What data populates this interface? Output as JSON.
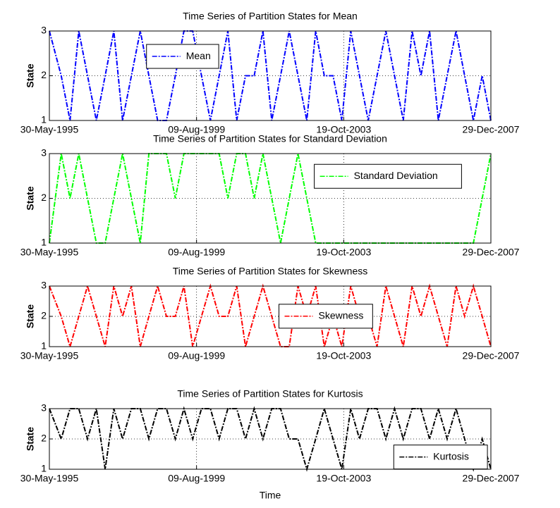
{
  "chart_data": [
    {
      "type": "line",
      "title": "Time Series of Partition States for Mean",
      "ylabel": "State",
      "x": [
        "1995-05-30",
        "1995-09-30",
        "1995-12-31",
        "1996-03-31",
        "1996-06-30",
        "1996-09-30",
        "1996-12-31",
        "1997-03-31",
        "1997-06-30",
        "1997-09-30",
        "1997-12-31",
        "1998-03-31",
        "1998-06-30",
        "1998-09-30",
        "1998-12-31",
        "1999-03-31",
        "1999-06-30",
        "1999-09-30",
        "1999-12-31",
        "2000-03-31",
        "2000-06-30",
        "2000-09-30",
        "2000-12-31",
        "2001-03-31",
        "2001-06-30",
        "2001-09-30",
        "2001-12-31",
        "2002-03-31",
        "2002-06-30",
        "2002-09-30",
        "2002-12-31",
        "2003-03-31",
        "2003-06-30",
        "2003-09-30",
        "2003-12-31",
        "2004-03-31",
        "2004-06-30",
        "2004-09-30",
        "2004-12-31",
        "2005-03-31",
        "2005-06-30",
        "2005-09-30",
        "2005-12-31",
        "2006-03-31",
        "2006-06-30",
        "2006-09-30",
        "2006-12-31",
        "2007-03-31",
        "2007-06-30",
        "2007-09-30",
        "2007-12-29"
      ],
      "xlim": [
        "1995-05-30",
        "2007-12-29"
      ],
      "xticks": [
        {
          "value": "1995-05-30",
          "label": "30-May-1995"
        },
        {
          "value": "1999-08-09",
          "label": "09-Aug-1999"
        },
        {
          "value": "2003-10-19",
          "label": "19-Oct-2003"
        },
        {
          "value": "2007-12-29",
          "label": "29-Dec-2007"
        }
      ],
      "ylim": [
        1,
        3
      ],
      "yticks": [
        1,
        2,
        3
      ],
      "grid": true,
      "legend": "upper left",
      "series": [
        {
          "name": "Mean",
          "color": "#0000ff",
          "values": [
            3,
            2,
            1,
            3,
            2,
            1,
            2,
            3,
            1,
            2,
            3,
            2,
            1,
            1,
            2,
            3,
            3,
            2,
            1,
            2,
            3,
            1,
            2,
            2,
            3,
            1,
            2,
            3,
            2,
            1,
            3,
            2,
            2,
            1,
            3,
            2,
            1,
            2,
            3,
            2,
            1,
            3,
            2,
            3,
            1,
            2,
            3,
            2,
            1,
            2,
            1
          ]
        }
      ]
    },
    {
      "type": "line",
      "title": "Time Series of Partition States for Standard Deviation",
      "ylabel": "State",
      "x": [
        "1995-05-30",
        "1995-09-30",
        "1995-12-31",
        "1996-03-31",
        "1996-06-30",
        "1996-09-30",
        "1996-12-31",
        "1997-03-31",
        "1997-06-30",
        "1997-09-30",
        "1997-12-31",
        "1998-03-31",
        "1998-06-30",
        "1998-09-30",
        "1998-12-31",
        "1999-03-31",
        "1999-06-30",
        "1999-09-30",
        "1999-12-31",
        "2000-03-31",
        "2000-06-30",
        "2000-09-30",
        "2000-12-31",
        "2001-03-31",
        "2001-06-30",
        "2001-09-30",
        "2001-12-31",
        "2002-03-31",
        "2002-06-30",
        "2002-09-30",
        "2002-12-31",
        "2003-03-31",
        "2003-06-30",
        "2003-09-30",
        "2003-12-31",
        "2004-03-31",
        "2004-06-30",
        "2004-09-30",
        "2004-12-31",
        "2005-03-31",
        "2005-06-30",
        "2005-09-30",
        "2005-12-31",
        "2006-03-31",
        "2006-06-30",
        "2006-09-30",
        "2006-12-31",
        "2007-03-31",
        "2007-06-30",
        "2007-09-30",
        "2007-12-29"
      ],
      "xlim": [
        "1995-05-30",
        "2007-12-29"
      ],
      "xticks": [
        {
          "value": "1995-05-30",
          "label": "30-May-1995"
        },
        {
          "value": "1999-08-09",
          "label": "09-Aug-1999"
        },
        {
          "value": "2003-10-19",
          "label": "19-Oct-2003"
        },
        {
          "value": "2007-12-29",
          "label": "29-Dec-2007"
        }
      ],
      "ylim": [
        1,
        3
      ],
      "yticks": [
        1,
        2,
        3
      ],
      "grid": true,
      "legend": "upper right",
      "series": [
        {
          "name": "Standard Deviation",
          "color": "#00ff00",
          "values": [
            1,
            3,
            2,
            3,
            2,
            1,
            1,
            2,
            3,
            2,
            1,
            3,
            3,
            3,
            2,
            3,
            3,
            3,
            3,
            3,
            2,
            3,
            3,
            2,
            3,
            2,
            1,
            2,
            3,
            2,
            1,
            1,
            1,
            1,
            1,
            1,
            1,
            1,
            1,
            1,
            1,
            1,
            1,
            1,
            1,
            1,
            1,
            1,
            1,
            2,
            3
          ]
        }
      ]
    },
    {
      "type": "line",
      "title": "Time Series of Partition States for Skewness",
      "ylabel": "State",
      "x": [
        "1995-05-30",
        "1995-09-30",
        "1995-12-31",
        "1996-03-31",
        "1996-06-30",
        "1996-09-30",
        "1996-12-31",
        "1997-03-31",
        "1997-06-30",
        "1997-09-30",
        "1997-12-31",
        "1998-03-31",
        "1998-06-30",
        "1998-09-30",
        "1998-12-31",
        "1999-03-31",
        "1999-06-30",
        "1999-09-30",
        "1999-12-31",
        "2000-03-31",
        "2000-06-30",
        "2000-09-30",
        "2000-12-31",
        "2001-03-31",
        "2001-06-30",
        "2001-09-30",
        "2001-12-31",
        "2002-03-31",
        "2002-06-30",
        "2002-09-30",
        "2002-12-31",
        "2003-03-31",
        "2003-06-30",
        "2003-09-30",
        "2003-12-31",
        "2004-03-31",
        "2004-06-30",
        "2004-09-30",
        "2004-12-31",
        "2005-03-31",
        "2005-06-30",
        "2005-09-30",
        "2005-12-31",
        "2006-03-31",
        "2006-06-30",
        "2006-09-30",
        "2006-12-31",
        "2007-03-31",
        "2007-06-30",
        "2007-09-30",
        "2007-12-29"
      ],
      "xlim": [
        "1995-05-30",
        "2007-12-29"
      ],
      "xticks": [
        {
          "value": "1995-05-30",
          "label": "30-May-1995"
        },
        {
          "value": "1999-08-09",
          "label": "09-Aug-1999"
        },
        {
          "value": "2003-10-19",
          "label": "19-Oct-2003"
        },
        {
          "value": "2007-12-29",
          "label": "29-Dec-2007"
        }
      ],
      "ylim": [
        1,
        3
      ],
      "yticks": [
        1,
        2,
        3
      ],
      "grid": true,
      "legend": "center",
      "series": [
        {
          "name": "Skewness",
          "color": "#ff0000",
          "values": [
            3,
            2,
            1,
            2,
            3,
            2,
            1,
            3,
            2,
            3,
            1,
            2,
            3,
            2,
            2,
            3,
            1,
            2,
            3,
            2,
            2,
            3,
            1,
            2,
            3,
            2,
            1,
            1,
            3,
            2,
            3,
            1,
            2,
            1,
            3,
            2,
            2,
            1,
            3,
            2,
            1,
            3,
            2,
            3,
            2,
            1,
            3,
            2,
            3,
            2,
            1
          ]
        }
      ]
    },
    {
      "type": "line",
      "title": "Time Series of Partition States for Kurtosis",
      "ylabel": "State",
      "xlabel": "Time",
      "x": [
        "1995-05-30",
        "1995-09-30",
        "1995-12-31",
        "1996-03-31",
        "1996-06-30",
        "1996-09-30",
        "1996-12-31",
        "1997-03-31",
        "1997-06-30",
        "1997-09-30",
        "1997-12-31",
        "1998-03-31",
        "1998-06-30",
        "1998-09-30",
        "1998-12-31",
        "1999-03-31",
        "1999-06-30",
        "1999-09-30",
        "1999-12-31",
        "2000-03-31",
        "2000-06-30",
        "2000-09-30",
        "2000-12-31",
        "2001-03-31",
        "2001-06-30",
        "2001-09-30",
        "2001-12-31",
        "2002-03-31",
        "2002-06-30",
        "2002-09-30",
        "2002-12-31",
        "2003-03-31",
        "2003-06-30",
        "2003-09-30",
        "2003-12-31",
        "2004-03-31",
        "2004-06-30",
        "2004-09-30",
        "2004-12-31",
        "2005-03-31",
        "2005-06-30",
        "2005-09-30",
        "2005-12-31",
        "2006-03-31",
        "2006-06-30",
        "2006-09-30",
        "2006-12-31",
        "2007-03-31",
        "2007-06-30",
        "2007-09-30",
        "2007-12-29"
      ],
      "xlim": [
        "1995-05-30",
        "2007-12-29"
      ],
      "xticks": [
        {
          "value": "1995-05-30",
          "label": "30-May-1995"
        },
        {
          "value": "1999-08-09",
          "label": "09-Aug-1999"
        },
        {
          "value": "2003-10-19",
          "label": "19-Oct-2003"
        },
        {
          "value": "2007-12-29",
          "label": "29-Dec-2007"
        }
      ],
      "ylim": [
        1,
        3
      ],
      "yticks": [
        1,
        2,
        3
      ],
      "grid": true,
      "legend": "lower right",
      "series": [
        {
          "name": "Kurtosis",
          "color": "#000000",
          "values": [
            3,
            2,
            3,
            3,
            2,
            3,
            1,
            3,
            2,
            3,
            3,
            2,
            3,
            3,
            2,
            3,
            2,
            3,
            3,
            2,
            3,
            3,
            2,
            3,
            2,
            3,
            3,
            2,
            2,
            1,
            2,
            3,
            2,
            1,
            3,
            2,
            3,
            3,
            2,
            3,
            2,
            3,
            3,
            2,
            3,
            2,
            3,
            2,
            1,
            2,
            1
          ]
        }
      ]
    }
  ]
}
